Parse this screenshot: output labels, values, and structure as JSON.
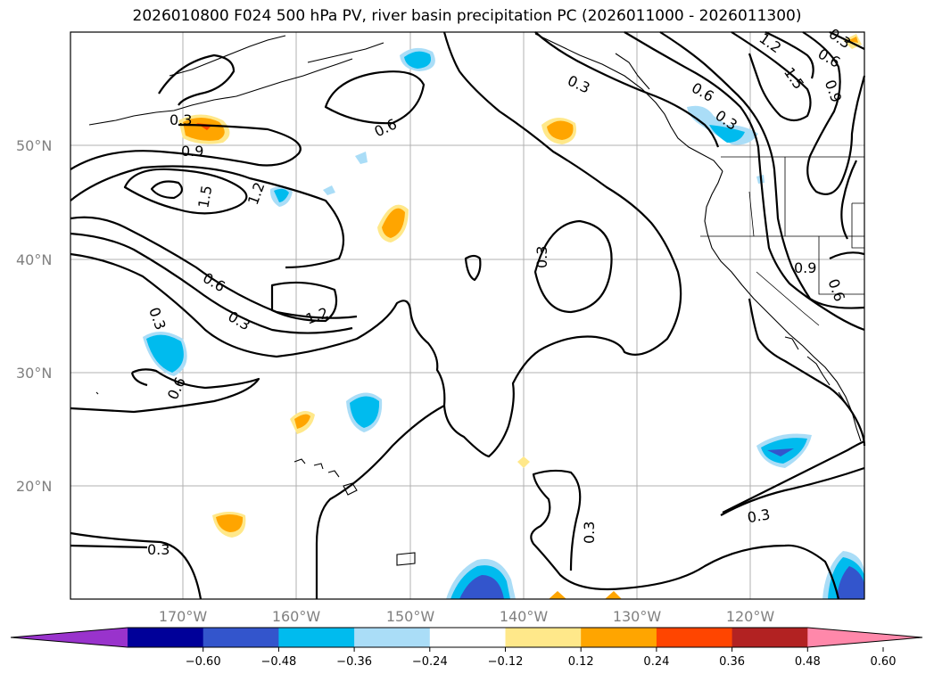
{
  "title": "2026010800 F024 500 hPa PV, river basin precipitation PC (2026011000 - 2026011300)",
  "map": {
    "latitude_labels": [
      "50°N",
      "40°N",
      "30°N",
      "20°N"
    ],
    "longitude_labels": [
      "170°W",
      "160°W",
      "150°W",
      "140°W",
      "130°W",
      "120°W"
    ],
    "contour_labels": [
      "0.3",
      "0.9",
      "1.5",
      "1.2",
      "0.6",
      "0.6",
      "0.3",
      "1.2",
      "0.3",
      "0.6",
      "0.3",
      "0.3",
      "0.3",
      "0.3",
      "0.6",
      "0.3",
      "1.2",
      "1.5",
      "0.6",
      "0.9",
      "0.9",
      "0.6",
      "0.3",
      "0.3"
    ]
  },
  "colorbar": {
    "ticks": [
      "−0.60",
      "−0.48",
      "−0.36",
      "−0.24",
      "−0.12",
      "0.12",
      "0.24",
      "0.36",
      "0.48",
      "0.60"
    ],
    "colors": [
      "#9933cc",
      "#000099",
      "#3355cc",
      "#00bbee",
      "#aaddf7",
      "#ffffff",
      "#ffe88a",
      "#ffa500",
      "#ff4500",
      "#b22222",
      "#ff88aa"
    ]
  }
}
